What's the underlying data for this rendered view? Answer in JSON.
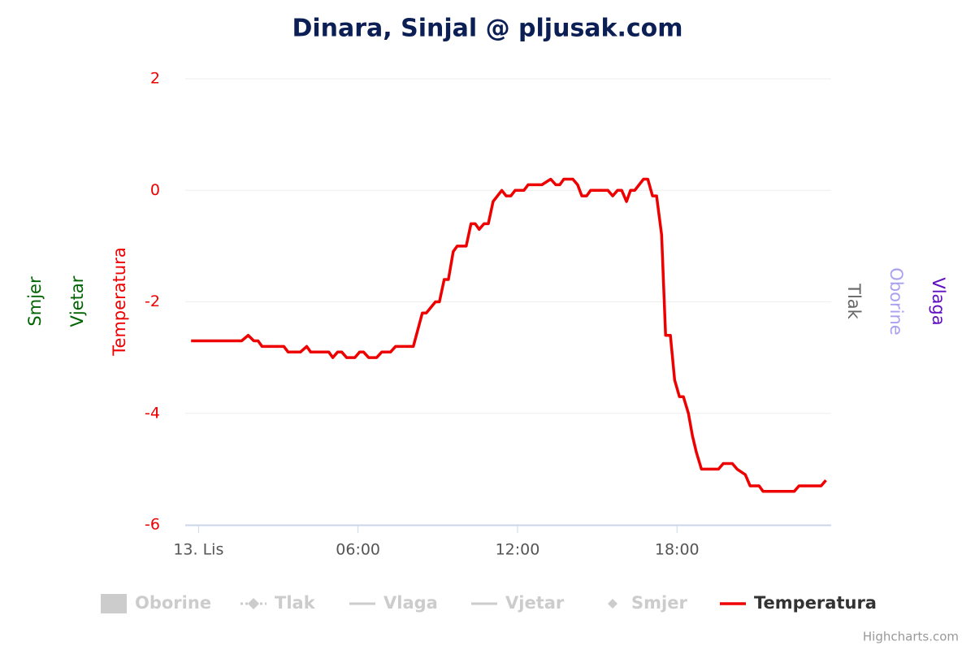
{
  "chart_data": {
    "type": "line",
    "title": "Dinara, Sinjal @ pljusak.com",
    "credits": "Highcharts.com",
    "xlim": [
      -0.5,
      23.8
    ],
    "xticks": [
      {
        "value": 0,
        "label": "13. Lis"
      },
      {
        "value": 6,
        "label": "06:00"
      },
      {
        "value": 12,
        "label": "12:00"
      },
      {
        "value": 18,
        "label": "18:00"
      }
    ],
    "ylim": [
      -6,
      2
    ],
    "yticks": [
      -6,
      -4,
      -2,
      0,
      2
    ],
    "y_axis_title": {
      "text": "Temperatura",
      "color": "#ee0000"
    },
    "other_axis_titles": [
      {
        "text": "Smjer",
        "color": "#006400",
        "side": "left"
      },
      {
        "text": "Vjetar",
        "color": "#006400",
        "side": "left"
      },
      {
        "text": "Tlak",
        "color": "#666666",
        "side": "right"
      },
      {
        "text": "Oborine",
        "color": "#a8a0f0",
        "side": "right"
      },
      {
        "text": "Vlaga",
        "color": "#6010c0",
        "side": "right"
      }
    ],
    "grid": true,
    "legend_hidden_items": [
      {
        "name": "Oborine",
        "symbol": "rect"
      },
      {
        "name": "Tlak",
        "symbol": "dash-diamond"
      },
      {
        "name": "Vlaga",
        "symbol": "line"
      },
      {
        "name": "Vjetar",
        "symbol": "line"
      },
      {
        "name": "Smjer",
        "symbol": "diamond"
      }
    ],
    "x": [
      -0.28,
      1.62,
      1.87,
      2.08,
      2.24,
      2.39,
      3.21,
      3.37,
      3.83,
      4.07,
      4.22,
      4.9,
      5.05,
      5.23,
      5.39,
      5.57,
      5.88,
      6.06,
      6.21,
      6.4,
      6.7,
      6.89,
      7.22,
      7.41,
      8.08,
      8.42,
      8.57,
      8.91,
      9.06,
      9.24,
      9.4,
      9.58,
      9.73,
      10.07,
      10.25,
      10.41,
      10.56,
      10.74,
      10.9,
      11.08,
      11.41,
      11.57,
      11.75,
      11.91,
      12.24,
      12.4,
      12.92,
      13.25,
      13.44,
      13.59,
      13.74,
      14.08,
      14.26,
      14.42,
      14.6,
      14.75,
      15.4,
      15.58,
      15.76,
      15.92,
      16.1,
      16.25,
      16.41,
      16.74,
      16.9,
      17.08,
      17.23,
      17.42,
      17.57,
      17.75,
      17.91,
      18.09,
      18.24,
      18.43,
      18.58,
      18.73,
      18.92,
      19.56,
      19.74,
      20.08,
      20.26,
      20.57,
      20.75,
      21.09,
      21.24,
      22.41,
      22.59,
      23.42,
      23.6
    ],
    "series": [
      {
        "name": "Temperatura",
        "color": "#ee0000",
        "values": [
          -2.7,
          -2.7,
          -2.6,
          -2.7,
          -2.7,
          -2.8,
          -2.8,
          -2.9,
          -2.9,
          -2.8,
          -2.9,
          -2.9,
          -3.0,
          -2.9,
          -2.9,
          -3.0,
          -3.0,
          -2.9,
          -2.9,
          -3.0,
          -3.0,
          -2.9,
          -2.9,
          -2.8,
          -2.8,
          -2.2,
          -2.2,
          -2.0,
          -2.0,
          -1.6,
          -1.6,
          -1.1,
          -1.0,
          -1.0,
          -0.6,
          -0.6,
          -0.7,
          -0.6,
          -0.6,
          -0.2,
          0.0,
          -0.1,
          -0.1,
          0.0,
          0.0,
          0.1,
          0.1,
          0.2,
          0.1,
          0.1,
          0.2,
          0.2,
          0.1,
          -0.1,
          -0.1,
          0.0,
          0.0,
          -0.1,
          0.0,
          0.0,
          -0.2,
          0.0,
          0.0,
          0.2,
          0.2,
          -0.1,
          -0.1,
          -0.8,
          -2.6,
          -2.6,
          -3.4,
          -3.7,
          -3.7,
          -4.0,
          -4.4,
          -4.7,
          -5.0,
          -5.0,
          -4.9,
          -4.9,
          -5.0,
          -5.1,
          -5.3,
          -5.3,
          -5.4,
          -5.4,
          -5.3,
          -5.3,
          -5.2
        ]
      }
    ]
  }
}
